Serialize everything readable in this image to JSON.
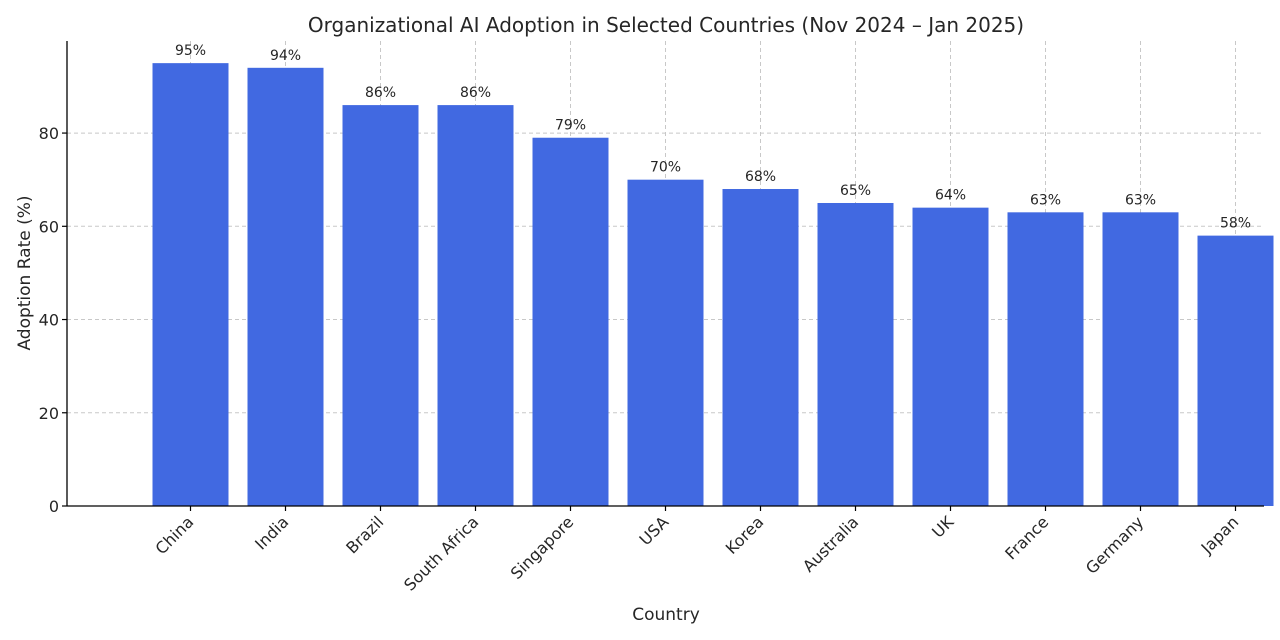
{
  "chart_data": {
    "type": "bar",
    "title": "Organizational AI Adoption in Selected Countries (Nov 2024 – Jan 2025)",
    "xlabel": "Country",
    "ylabel": "Adoption Rate (%)",
    "categories": [
      "China",
      "India",
      "Brazil",
      "South Africa",
      "Singapore",
      "USA",
      "Korea",
      "Australia",
      "UK",
      "France",
      "Germany",
      "Japan"
    ],
    "values": [
      95,
      94,
      86,
      86,
      79,
      70,
      68,
      65,
      64,
      63,
      63,
      58
    ],
    "value_labels": [
      "95%",
      "94%",
      "86%",
      "86%",
      "79%",
      "70%",
      "68%",
      "65%",
      "64%",
      "63%",
      "63%",
      "58%"
    ],
    "ylim": [
      0,
      99.75
    ],
    "yticks": [
      0,
      20,
      40,
      60,
      80
    ],
    "ytick_labels": [
      "0",
      "20",
      "40",
      "60",
      "80"
    ],
    "grid": true,
    "bar_color": "#4169e1",
    "tick_label_rotation": "45 degrees"
  }
}
